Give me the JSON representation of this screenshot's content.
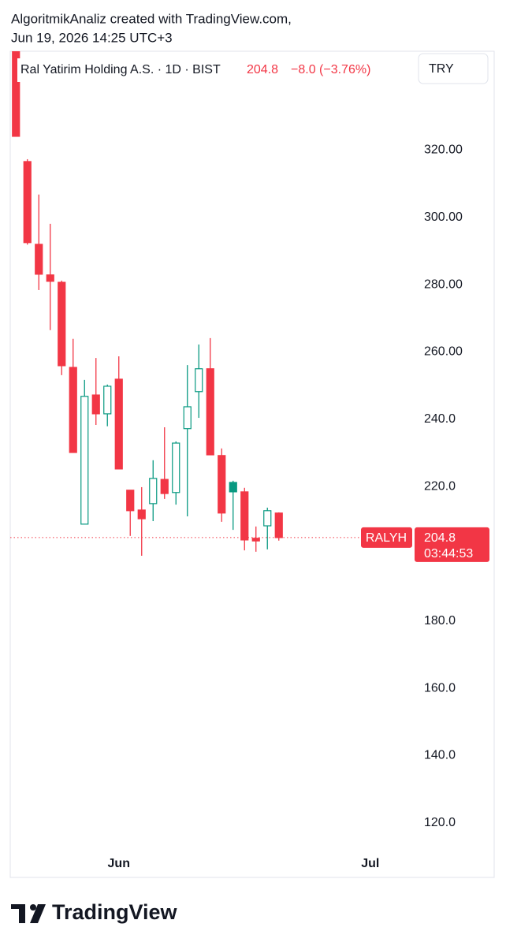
{
  "header": {
    "line1": "AlgoritmikAnaliz created with TradingView.com,",
    "line2": "Jun 19, 2026 14:25 UTC+3"
  },
  "chart_data": {
    "type": "candlestick",
    "legend": {
      "symbol": "Ral Yatirim Holding A.S. · 1D · BIST",
      "change": "−8.0 (−3.76%)"
    },
    "currency": "TRY",
    "ticker": "RALYH",
    "countdown": "03:44:53",
    "last_price": 204.8,
    "up_color": "#089981",
    "down_color": "#f23645",
    "style": "hollow",
    "categories": [
      null,
      null,
      null,
      null,
      null,
      null,
      null,
      null,
      null,
      "Jun",
      null,
      null,
      null,
      null,
      null,
      null,
      null,
      null,
      null,
      null,
      null,
      null,
      null,
      null,
      null,
      null,
      null,
      null,
      null,
      null,
      null,
      "Jul",
      null,
      null,
      null
    ],
    "open": [
      350,
      316.6,
      292,
      282.9,
      280.7,
      255.4,
      208.8,
      247.2,
      241.6,
      251.9,
      218.9,
      213,
      214.9,
      222.1,
      218.2,
      237.2,
      248.2,
      255,
      229.2,
      221.2,
      218.4,
      204.6,
      208.3,
      212.1,
      null,
      null,
      null,
      null,
      null,
      null,
      null,
      null,
      null,
      null,
      null
    ],
    "high": [
      352,
      317.3,
      306.8,
      298.1,
      281.2,
      263.9,
      251.7,
      258.2,
      250.3,
      258.7,
      218.9,
      219.8,
      227.8,
      237.6,
      233.4,
      256.1,
      262.2,
      264.1,
      231.3,
      221.7,
      219.6,
      208.1,
      213.7,
      212.3,
      null,
      null,
      null,
      null,
      null,
      null,
      null,
      null,
      null,
      null,
      null
    ],
    "low": [
      324.1,
      291.9,
      278.4,
      266.5,
      253.1,
      230.1,
      208.8,
      238.3,
      237.9,
      225.2,
      205.3,
      199.4,
      209.7,
      216.3,
      214.6,
      211.1,
      240.4,
      229.4,
      209.5,
      207.1,
      201,
      200.6,
      201.3,
      203.9,
      null,
      null,
      null,
      null,
      null,
      null,
      null,
      null,
      null,
      null,
      null
    ],
    "close": [
      324.1,
      292.5,
      283.1,
      281,
      255.9,
      230.1,
      246.8,
      241.6,
      249.8,
      225.2,
      212.8,
      210.4,
      222.4,
      217.9,
      232.9,
      243.7,
      255,
      229.4,
      212.1,
      218.4,
      204.1,
      203.8,
      212.8,
      204.8,
      null,
      null,
      null,
      null,
      null,
      null,
      null,
      null,
      null,
      null,
      null
    ],
    "ylim": [
      111.5,
      349.4
    ],
    "yticks": [
      {
        "value": 120,
        "label": "120.0"
      },
      {
        "value": 140,
        "label": "140.0"
      },
      {
        "value": 160,
        "label": "160.0"
      },
      {
        "value": 180,
        "label": "180.0"
      },
      {
        "value": 220,
        "label": "220.0"
      },
      {
        "value": 240,
        "label": "240.0"
      },
      {
        "value": 260,
        "label": "260.00"
      },
      {
        "value": 280,
        "label": "280.00"
      },
      {
        "value": 300,
        "label": "300.00"
      },
      {
        "value": 320,
        "label": "320.00"
      }
    ]
  },
  "footer": {
    "brand": "TradingView"
  }
}
